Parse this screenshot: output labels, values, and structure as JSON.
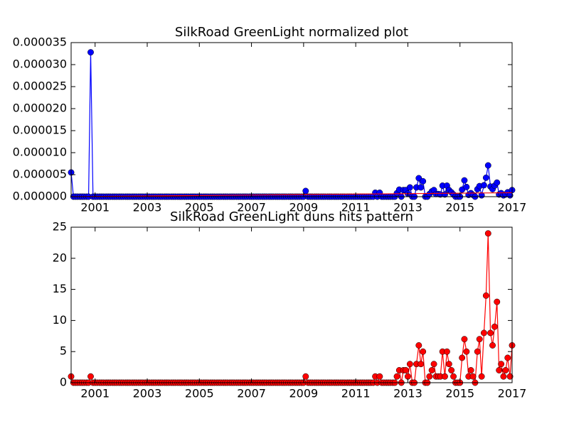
{
  "chart_data": [
    {
      "type": "line",
      "title": "SilkRoad GreenLight normalized plot",
      "x": [
        2000.08,
        2000.17,
        2000.25,
        2000.33,
        2000.42,
        2000.5,
        2000.58,
        2000.67,
        2000.75,
        2000.83,
        2000.92,
        2001,
        2001.08,
        2001.17,
        2001.25,
        2001.33,
        2001.42,
        2001.5,
        2001.58,
        2001.67,
        2001.75,
        2001.83,
        2001.92,
        2002,
        2002.08,
        2002.17,
        2002.25,
        2002.33,
        2002.42,
        2002.5,
        2002.58,
        2002.67,
        2002.75,
        2002.83,
        2002.92,
        2003,
        2003.08,
        2003.17,
        2003.25,
        2003.33,
        2003.42,
        2003.5,
        2003.58,
        2003.67,
        2003.75,
        2003.83,
        2003.92,
        2004,
        2004.08,
        2004.17,
        2004.25,
        2004.33,
        2004.42,
        2004.5,
        2004.58,
        2004.67,
        2004.75,
        2004.83,
        2004.92,
        2005,
        2005.08,
        2005.17,
        2005.25,
        2005.33,
        2005.42,
        2005.5,
        2005.58,
        2005.67,
        2005.75,
        2005.83,
        2005.92,
        2006,
        2006.08,
        2006.17,
        2006.25,
        2006.33,
        2006.42,
        2006.5,
        2006.58,
        2006.67,
        2006.75,
        2006.83,
        2006.92,
        2007,
        2007.08,
        2007.17,
        2007.25,
        2007.33,
        2007.42,
        2007.5,
        2007.58,
        2007.67,
        2007.75,
        2007.83,
        2007.92,
        2008,
        2008.08,
        2008.17,
        2008.25,
        2008.33,
        2008.42,
        2008.5,
        2008.58,
        2008.67,
        2008.75,
        2008.83,
        2008.92,
        2009,
        2009.08,
        2009.17,
        2009.25,
        2009.33,
        2009.42,
        2009.5,
        2009.58,
        2009.67,
        2009.75,
        2009.83,
        2009.92,
        2010,
        2010.08,
        2010.17,
        2010.25,
        2010.33,
        2010.42,
        2010.5,
        2010.58,
        2010.67,
        2010.75,
        2010.83,
        2010.92,
        2011,
        2011.08,
        2011.17,
        2011.25,
        2011.33,
        2011.42,
        2011.5,
        2011.58,
        2011.67,
        2011.75,
        2011.83,
        2011.92,
        2012,
        2012.08,
        2012.17,
        2012.25,
        2012.33,
        2012.42,
        2012.5,
        2012.58,
        2012.67,
        2012.75,
        2012.83,
        2012.92,
        2013,
        2013.08,
        2013.17,
        2013.25,
        2013.33,
        2013.42,
        2013.5,
        2013.58,
        2013.67,
        2013.75,
        2013.83,
        2013.92,
        2014,
        2014.08,
        2014.17,
        2014.25,
        2014.33,
        2014.42,
        2014.5,
        2014.58,
        2014.67,
        2014.75,
        2014.83,
        2014.92,
        2015,
        2015.08,
        2015.17,
        2015.25,
        2015.33,
        2015.42,
        2015.5,
        2015.58,
        2015.67,
        2015.75,
        2015.83,
        2015.92,
        2016,
        2016.08,
        2016.17,
        2016.25,
        2016.33,
        2016.42,
        2016.5,
        2016.58,
        2016.67,
        2016.75,
        2016.83,
        2016.92,
        2017
      ],
      "series": [
        {
          "color": "#0000ff",
          "marker": "o",
          "values": [
            5.5e-06,
            0,
            0,
            0,
            0,
            0,
            0,
            0,
            0,
            3.28e-05,
            0,
            0,
            0,
            0,
            0,
            0,
            0,
            0,
            0,
            0,
            0,
            0,
            0,
            0,
            0,
            0,
            0,
            0,
            0,
            0,
            0,
            0,
            0,
            0,
            0,
            0,
            0,
            0,
            0,
            0,
            0,
            0,
            0,
            0,
            0,
            0,
            0,
            0,
            0,
            0,
            0,
            0,
            0,
            0,
            0,
            0,
            0,
            0,
            0,
            0,
            0,
            0,
            0,
            0,
            0,
            0,
            0,
            0,
            0,
            0,
            0,
            0,
            0,
            0,
            0,
            0,
            0,
            0,
            0,
            0,
            0,
            0,
            0,
            0,
            0,
            0,
            0,
            0,
            0,
            0,
            0,
            0,
            0,
            0,
            0,
            0,
            0,
            0,
            0,
            0,
            0,
            0,
            0,
            0,
            0,
            0,
            0,
            0,
            1.3e-06,
            0,
            0,
            0,
            0,
            0,
            0,
            0,
            0,
            0,
            0,
            0,
            0,
            0,
            0,
            0,
            0,
            0,
            0,
            0,
            0,
            0,
            0,
            0,
            0,
            0,
            0,
            0,
            0,
            0,
            0,
            0,
            9e-07,
            0,
            9e-07,
            0,
            0,
            0,
            0,
            0,
            0,
            0,
            8e-07,
            1.6e-06,
            0,
            1.5e-06,
            1.5e-06,
            7e-07,
            2.1e-06,
            0,
            0,
            2.1e-06,
            4.2e-06,
            2.1e-06,
            3.5e-06,
            0,
            0,
            6e-07,
            1.2e-06,
            1.5e-06,
            6e-07,
            6e-07,
            5e-07,
            2.5e-06,
            5e-07,
            2.5e-06,
            1.5e-06,
            1e-06,
            5e-07,
            0,
            0,
            0,
            1.6e-06,
            3.7e-06,
            2.2e-06,
            4e-07,
            8e-07,
            4e-07,
            0,
            1.7e-06,
            2.4e-06,
            3e-07,
            2.6e-06,
            4.3e-06,
            7.1e-06,
            2.3e-06,
            1.7e-06,
            2.5e-06,
            3.2e-06,
            5e-07,
            8e-07,
            3e-07,
            5e-07,
            1e-06,
            3e-07,
            1.5e-06
          ]
        },
        {
          "color": "#ff0000",
          "x": [
            2000.08,
            2017
          ],
          "values": [
            0,
            9e-07
          ]
        }
      ],
      "xlim": [
        2000.08,
        2017
      ],
      "xticks": [
        2001,
        2003,
        2005,
        2007,
        2009,
        2011,
        2013,
        2015,
        2017
      ],
      "ylim": [
        0,
        3.5e-05
      ],
      "yticks": [
        {
          "value": 0,
          "label": "0.000000"
        },
        {
          "value": 5e-06,
          "label": "0.000005"
        },
        {
          "value": 1e-05,
          "label": "0.000010"
        },
        {
          "value": 1.5e-05,
          "label": "0.000015"
        },
        {
          "value": 2e-05,
          "label": "0.000020"
        },
        {
          "value": 2.5e-05,
          "label": "0.000025"
        },
        {
          "value": 3e-05,
          "label": "0.000030"
        },
        {
          "value": 3.5e-05,
          "label": "0.000035"
        }
      ]
    },
    {
      "type": "line",
      "title": "SilkRoad GreenLight duns hits pattern",
      "x": [
        2000.08,
        2000.17,
        2000.25,
        2000.33,
        2000.42,
        2000.5,
        2000.58,
        2000.67,
        2000.75,
        2000.83,
        2000.92,
        2001,
        2001.08,
        2001.17,
        2001.25,
        2001.33,
        2001.42,
        2001.5,
        2001.58,
        2001.67,
        2001.75,
        2001.83,
        2001.92,
        2002,
        2002.08,
        2002.17,
        2002.25,
        2002.33,
        2002.42,
        2002.5,
        2002.58,
        2002.67,
        2002.75,
        2002.83,
        2002.92,
        2003,
        2003.08,
        2003.17,
        2003.25,
        2003.33,
        2003.42,
        2003.5,
        2003.58,
        2003.67,
        2003.75,
        2003.83,
        2003.92,
        2004,
        2004.08,
        2004.17,
        2004.25,
        2004.33,
        2004.42,
        2004.5,
        2004.58,
        2004.67,
        2004.75,
        2004.83,
        2004.92,
        2005,
        2005.08,
        2005.17,
        2005.25,
        2005.33,
        2005.42,
        2005.5,
        2005.58,
        2005.67,
        2005.75,
        2005.83,
        2005.92,
        2006,
        2006.08,
        2006.17,
        2006.25,
        2006.33,
        2006.42,
        2006.5,
        2006.58,
        2006.67,
        2006.75,
        2006.83,
        2006.92,
        2007,
        2007.08,
        2007.17,
        2007.25,
        2007.33,
        2007.42,
        2007.5,
        2007.58,
        2007.67,
        2007.75,
        2007.83,
        2007.92,
        2008,
        2008.08,
        2008.17,
        2008.25,
        2008.33,
        2008.42,
        2008.5,
        2008.58,
        2008.67,
        2008.75,
        2008.83,
        2008.92,
        2009,
        2009.08,
        2009.17,
        2009.25,
        2009.33,
        2009.42,
        2009.5,
        2009.58,
        2009.67,
        2009.75,
        2009.83,
        2009.92,
        2010,
        2010.08,
        2010.17,
        2010.25,
        2010.33,
        2010.42,
        2010.5,
        2010.58,
        2010.67,
        2010.75,
        2010.83,
        2010.92,
        2011,
        2011.08,
        2011.17,
        2011.25,
        2011.33,
        2011.42,
        2011.5,
        2011.58,
        2011.67,
        2011.75,
        2011.83,
        2011.92,
        2012,
        2012.08,
        2012.17,
        2012.25,
        2012.33,
        2012.42,
        2012.5,
        2012.58,
        2012.67,
        2012.75,
        2012.83,
        2012.92,
        2013,
        2013.08,
        2013.17,
        2013.25,
        2013.33,
        2013.42,
        2013.5,
        2013.58,
        2013.67,
        2013.75,
        2013.83,
        2013.92,
        2014,
        2014.08,
        2014.17,
        2014.25,
        2014.33,
        2014.42,
        2014.5,
        2014.58,
        2014.67,
        2014.75,
        2014.83,
        2014.92,
        2015,
        2015.08,
        2015.17,
        2015.25,
        2015.33,
        2015.42,
        2015.5,
        2015.58,
        2015.67,
        2015.75,
        2015.83,
        2015.92,
        2016,
        2016.08,
        2016.17,
        2016.25,
        2016.33,
        2016.42,
        2016.5,
        2016.58,
        2016.67,
        2016.75,
        2016.83,
        2016.92,
        2017
      ],
      "series": [
        {
          "color": "#ff0000",
          "marker": "o",
          "values": [
            1,
            0,
            0,
            0,
            0,
            0,
            0,
            0,
            0,
            1,
            0,
            0,
            0,
            0,
            0,
            0,
            0,
            0,
            0,
            0,
            0,
            0,
            0,
            0,
            0,
            0,
            0,
            0,
            0,
            0,
            0,
            0,
            0,
            0,
            0,
            0,
            0,
            0,
            0,
            0,
            0,
            0,
            0,
            0,
            0,
            0,
            0,
            0,
            0,
            0,
            0,
            0,
            0,
            0,
            0,
            0,
            0,
            0,
            0,
            0,
            0,
            0,
            0,
            0,
            0,
            0,
            0,
            0,
            0,
            0,
            0,
            0,
            0,
            0,
            0,
            0,
            0,
            0,
            0,
            0,
            0,
            0,
            0,
            0,
            0,
            0,
            0,
            0,
            0,
            0,
            0,
            0,
            0,
            0,
            0,
            0,
            0,
            0,
            0,
            0,
            0,
            0,
            0,
            0,
            0,
            0,
            0,
            0,
            1,
            0,
            0,
            0,
            0,
            0,
            0,
            0,
            0,
            0,
            0,
            0,
            0,
            0,
            0,
            0,
            0,
            0,
            0,
            0,
            0,
            0,
            0,
            0,
            0,
            0,
            0,
            0,
            0,
            0,
            0,
            0,
            1,
            0,
            1,
            0,
            0,
            0,
            0,
            0,
            0,
            0,
            1,
            2,
            0,
            2,
            2,
            1,
            3,
            0,
            0,
            3,
            6,
            3,
            5,
            0,
            0,
            1,
            2,
            3,
            1,
            1,
            1,
            5,
            1,
            5,
            3,
            2,
            1,
            0,
            0,
            0,
            4,
            7,
            5,
            1,
            2,
            1,
            0,
            5,
            7,
            1,
            8,
            14,
            24,
            8,
            6,
            9,
            13,
            2,
            3,
            1,
            2,
            4,
            1,
            6
          ]
        }
      ],
      "xlim": [
        2000.08,
        2017
      ],
      "xticks": [
        2001,
        2003,
        2005,
        2007,
        2009,
        2011,
        2013,
        2015,
        2017
      ],
      "ylim": [
        0,
        25
      ],
      "yticks": [
        0,
        5,
        10,
        15,
        20,
        25
      ]
    }
  ]
}
